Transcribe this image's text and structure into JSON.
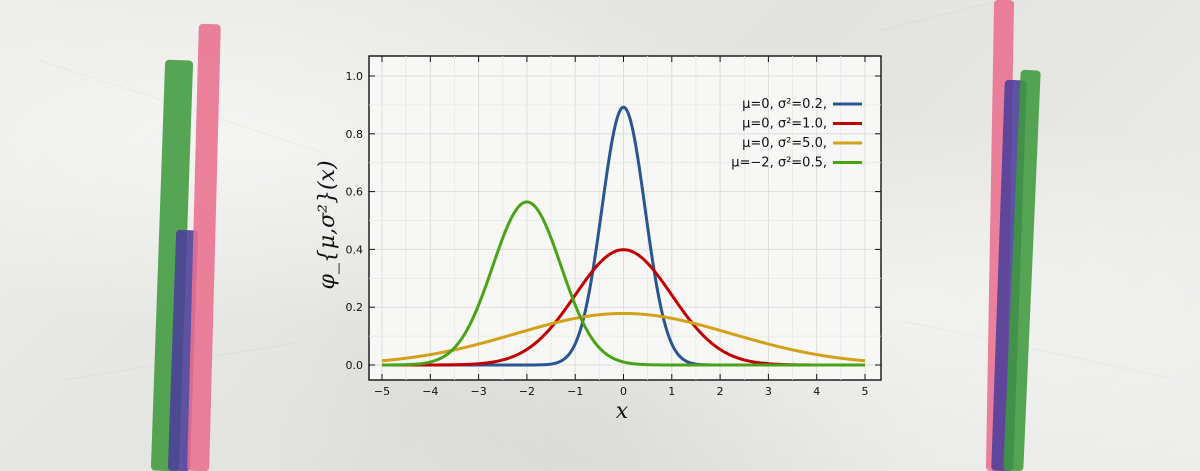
{
  "colors": {
    "background": "#e9e9e7",
    "blue": "#2a5593",
    "red": "#c00000",
    "orange": "#d4a017",
    "green": "#4aa317",
    "decor_pink": "#e9708f",
    "decor_green": "#3f9a3f",
    "decor_purple": "#4b3f9a"
  },
  "chart_data": {
    "type": "line",
    "xlabel": "x",
    "ylabel": "φ_{μ,σ²}(x)",
    "xlim": [
      -5,
      5
    ],
    "ylim": [
      0,
      1.05
    ],
    "xticks": [
      -5,
      -4,
      -3,
      -2,
      -1,
      0,
      1,
      2,
      3,
      4,
      5
    ],
    "yticks": [
      0.0,
      0.2,
      0.4,
      0.6,
      0.8,
      1.0
    ],
    "xtick_labels": [
      "−5",
      "−4",
      "−3",
      "−2",
      "−1",
      "0",
      "1",
      "2",
      "3",
      "4",
      "5"
    ],
    "ytick_labels": [
      "0.0",
      "0.2",
      "0.4",
      "0.6",
      "0.8",
      "1.0"
    ],
    "grid": true,
    "legend_position": "top-right",
    "series": [
      {
        "name": "μ=0,   σ²=0.2,",
        "mu": 0,
        "variance": 0.2,
        "color": "#2a5593"
      },
      {
        "name": "μ=0,   σ²=1.0,",
        "mu": 0,
        "variance": 1.0,
        "color": "#c00000"
      },
      {
        "name": "μ=0,   σ²=5.0,",
        "mu": 0,
        "variance": 5.0,
        "color": "#d4a017"
      },
      {
        "name": "μ=−2, σ²=0.5,",
        "mu": -2,
        "variance": 0.5,
        "color": "#4aa317"
      }
    ]
  }
}
